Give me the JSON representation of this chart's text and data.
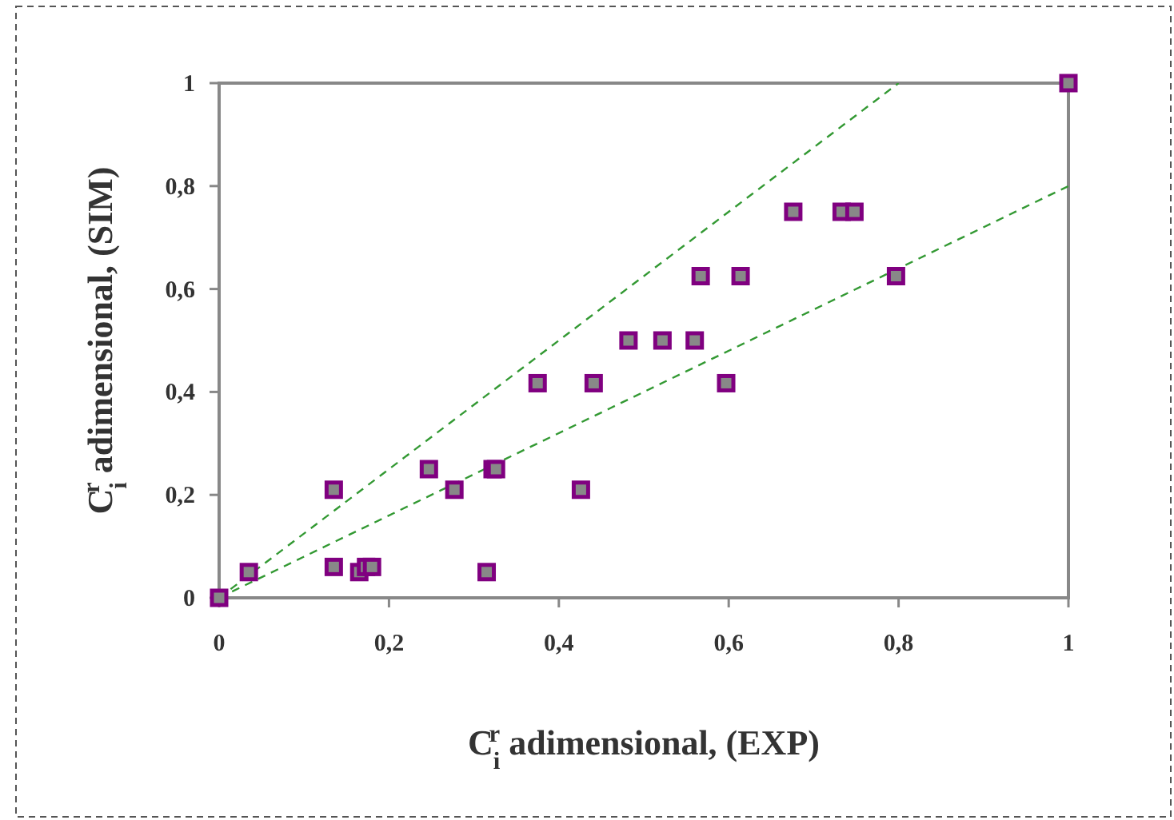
{
  "chart_data": {
    "type": "scatter",
    "xlabel": "C$_{i}$$^{r}$ adimensional, (EXP)",
    "ylabel": "C$_{i}$$^{r}$ adimensional, (SIM)",
    "xlim": [
      0,
      1
    ],
    "ylim": [
      0,
      1
    ],
    "xticks": [
      0,
      {
        "value": 0.2,
        "label": "0,2"
      },
      {
        "value": 0.4,
        "label": "0,4"
      },
      {
        "value": 0.6,
        "label": "0,6"
      },
      {
        "value": 0.8,
        "label": "0,8"
      },
      1
    ],
    "yticks": [
      0,
      {
        "value": 0.2,
        "label": "0,2"
      },
      {
        "value": 0.4,
        "label": "0,4"
      },
      {
        "value": 0.6,
        "label": "0,6"
      },
      {
        "value": 0.8,
        "label": "0,8"
      },
      1
    ],
    "grid": false,
    "series": [
      {
        "color": "#800080",
        "marker": "square",
        "x": [
          0,
          0.035,
          0.135,
          0.135,
          0.165,
          0.173,
          0.18,
          0.247,
          0.277,
          0.315,
          0.322,
          0.326,
          0.375,
          0.426,
          0.441,
          0.482,
          0.522,
          0.56,
          0.567,
          0.597,
          0.614,
          0.676,
          0.733,
          0.748,
          0.797,
          1
        ],
        "values": [
          0,
          0.05,
          0.06,
          0.21,
          0.05,
          0.06,
          0.06,
          0.25,
          0.21,
          0.05,
          0.25,
          0.25,
          0.417,
          0.21,
          0.417,
          0.5,
          0.5,
          0.5,
          0.625,
          0.417,
          0.625,
          0.75,
          0.75,
          0.75,
          0.625,
          1
        ]
      },
      {
        "type": "line",
        "color": "#339933",
        "line_style": "dashed",
        "marker": "none",
        "x": [
          0,
          0.8
        ],
        "values": [
          0,
          1
        ]
      },
      {
        "type": "line",
        "color": "#339933",
        "line_style": "dashed",
        "marker": "none",
        "x": [
          0,
          1
        ],
        "values": [
          0,
          0.8
        ]
      }
    ]
  }
}
